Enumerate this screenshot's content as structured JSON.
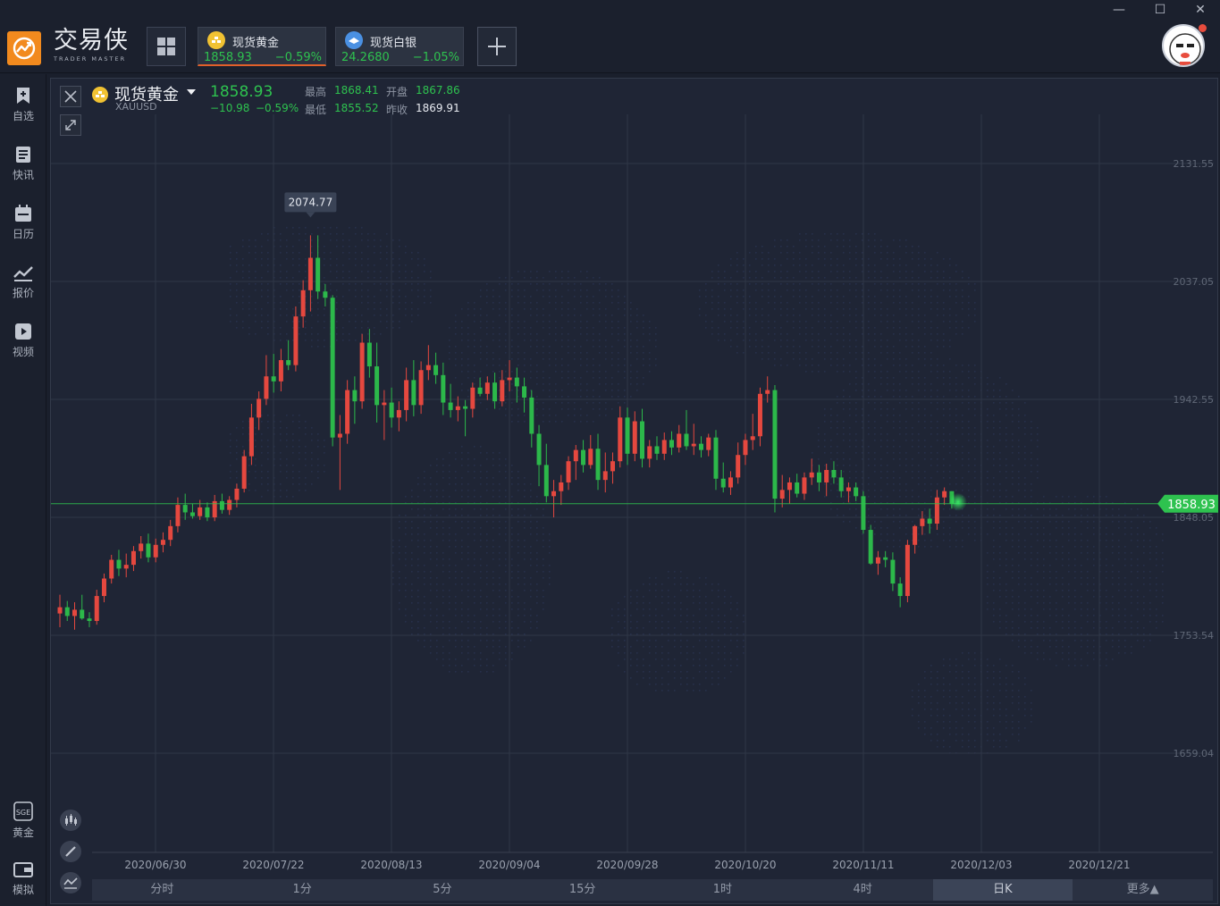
{
  "app": {
    "brand_cn": "交易侠",
    "brand_en": "TRADER MASTER"
  },
  "tabs": [
    {
      "name": "现货黄金",
      "price": "1858.93",
      "change": "−0.59%",
      "icon": "gold-coin-icon",
      "color": "#f1c232"
    },
    {
      "name": "现货白银",
      "price": "24.2680",
      "change": "−1.05%",
      "icon": "silver-coin-icon",
      "color": "#4a90e2"
    }
  ],
  "window_controls": {
    "minimize": "—",
    "maximize": "☐",
    "close": "✕"
  },
  "sidebar": {
    "items": [
      {
        "label": "自选",
        "icon": "watchlist-icon"
      },
      {
        "label": "快讯",
        "icon": "news-flash-icon"
      },
      {
        "label": "日历",
        "icon": "calendar-icon"
      },
      {
        "label": "报价",
        "icon": "quote-chart-icon"
      },
      {
        "label": "视频",
        "icon": "video-play-icon"
      }
    ],
    "bottom_items": [
      {
        "label": "黄金",
        "icon": "sge-icon",
        "icon_text": "SGE"
      },
      {
        "label": "模拟",
        "icon": "wallet-icon"
      }
    ]
  },
  "quote": {
    "name": "现货黄金",
    "code": "XAUUSD",
    "price": "1858.93",
    "change": "−10.98",
    "change_pct": "−0.59%",
    "high_label": "最高",
    "high": "1868.41",
    "open_label": "开盘",
    "open": "1867.86",
    "low_label": "最低",
    "low": "1855.52",
    "prev_label": "昨收",
    "prev_close": "1869.91"
  },
  "colors": {
    "up": "#e5483f",
    "down": "#2cb84a",
    "price_line": "#2ec24f",
    "grid": "#2f3647"
  },
  "periods": [
    "分时",
    "1分",
    "5分",
    "15分",
    "1时",
    "4时",
    "日K",
    "更多▲"
  ],
  "active_period": "日K",
  "chart_data": {
    "type": "candlestick",
    "y_ticks": [
      "2131.55",
      "2037.05",
      "1942.55",
      "1848.05",
      "1753.54",
      "1659.04"
    ],
    "ylim": [
      1659.04,
      2131.55
    ],
    "x_ticks": [
      "2020/06/30",
      "2020/07/22",
      "2020/08/13",
      "2020/09/04",
      "2020/09/28",
      "2020/10/20",
      "2020/11/11",
      "2020/12/03",
      "2020/12/21"
    ],
    "current_price": "1858.93",
    "peak_annotation": "2074.77",
    "ohlc": [
      [
        1771,
        1786,
        1760,
        1776
      ],
      [
        1776,
        1781,
        1765,
        1769
      ],
      [
        1769,
        1780,
        1758,
        1774
      ],
      [
        1774,
        1786,
        1766,
        1767
      ],
      [
        1767,
        1772,
        1760,
        1765
      ],
      [
        1765,
        1790,
        1762,
        1785
      ],
      [
        1785,
        1803,
        1780,
        1799
      ],
      [
        1799,
        1818,
        1795,
        1814
      ],
      [
        1814,
        1822,
        1801,
        1807
      ],
      [
        1807,
        1819,
        1800,
        1810
      ],
      [
        1810,
        1825,
        1805,
        1821
      ],
      [
        1821,
        1833,
        1815,
        1827
      ],
      [
        1827,
        1835,
        1812,
        1816
      ],
      [
        1816,
        1831,
        1812,
        1826
      ],
      [
        1826,
        1836,
        1820,
        1830
      ],
      [
        1830,
        1846,
        1825,
        1841
      ],
      [
        1841,
        1864,
        1836,
        1858
      ],
      [
        1858,
        1867,
        1846,
        1852
      ],
      [
        1852,
        1859,
        1847,
        1849
      ],
      [
        1849,
        1862,
        1846,
        1856
      ],
      [
        1856,
        1860,
        1845,
        1848
      ],
      [
        1848,
        1866,
        1845,
        1861
      ],
      [
        1861,
        1867,
        1851,
        1854
      ],
      [
        1854,
        1865,
        1850,
        1862
      ],
      [
        1862,
        1875,
        1856,
        1871
      ],
      [
        1871,
        1902,
        1868,
        1897
      ],
      [
        1897,
        1939,
        1890,
        1928
      ],
      [
        1928,
        1949,
        1918,
        1943
      ],
      [
        1943,
        1978,
        1938,
        1961
      ],
      [
        1961,
        1979,
        1948,
        1957
      ],
      [
        1957,
        1983,
        1949,
        1974
      ],
      [
        1974,
        1990,
        1966,
        1970
      ],
      [
        1970,
        2017,
        1965,
        2009
      ],
      [
        2009,
        2038,
        2000,
        2030
      ],
      [
        2030,
        2074,
        2013,
        2056
      ],
      [
        2056,
        2074,
        2023,
        2029
      ],
      [
        2029,
        2035,
        2017,
        2024
      ],
      [
        2024,
        2026,
        1905,
        1912
      ],
      [
        1912,
        1930,
        1870,
        1915
      ],
      [
        1915,
        1958,
        1907,
        1950
      ],
      [
        1950,
        1961,
        1923,
        1941
      ],
      [
        1941,
        1995,
        1935,
        1988
      ],
      [
        1988,
        1999,
        1960,
        1969
      ],
      [
        1969,
        1988,
        1924,
        1938
      ],
      [
        1938,
        1950,
        1910,
        1940
      ],
      [
        1940,
        1952,
        1920,
        1928
      ],
      [
        1928,
        1941,
        1917,
        1934
      ],
      [
        1934,
        1968,
        1925,
        1958
      ],
      [
        1958,
        1974,
        1929,
        1938
      ],
      [
        1938,
        1973,
        1931,
        1966
      ],
      [
        1966,
        1986,
        1958,
        1970
      ],
      [
        1970,
        1980,
        1955,
        1962
      ],
      [
        1962,
        1972,
        1930,
        1940
      ],
      [
        1940,
        1955,
        1928,
        1934
      ],
      [
        1934,
        1945,
        1925,
        1937
      ],
      [
        1937,
        1942,
        1913,
        1935
      ],
      [
        1935,
        1956,
        1928,
        1952
      ],
      [
        1952,
        1960,
        1945,
        1947
      ],
      [
        1947,
        1961,
        1942,
        1956
      ],
      [
        1956,
        1964,
        1935,
        1941
      ],
      [
        1941,
        1966,
        1937,
        1958
      ],
      [
        1958,
        1974,
        1949,
        1960
      ],
      [
        1960,
        1968,
        1940,
        1953
      ],
      [
        1953,
        1960,
        1932,
        1944
      ],
      [
        1944,
        1950,
        1904,
        1915
      ],
      [
        1915,
        1922,
        1873,
        1890
      ],
      [
        1890,
        1907,
        1860,
        1865
      ],
      [
        1865,
        1878,
        1848,
        1869
      ],
      [
        1869,
        1882,
        1858,
        1876
      ],
      [
        1876,
        1897,
        1870,
        1893
      ],
      [
        1893,
        1906,
        1878,
        1902
      ],
      [
        1902,
        1910,
        1884,
        1890
      ],
      [
        1890,
        1914,
        1887,
        1903
      ],
      [
        1903,
        1915,
        1870,
        1878
      ],
      [
        1878,
        1900,
        1868,
        1885
      ],
      [
        1885,
        1900,
        1875,
        1893
      ],
      [
        1893,
        1937,
        1888,
        1928
      ],
      [
        1928,
        1936,
        1890,
        1899
      ],
      [
        1899,
        1933,
        1893,
        1925
      ],
      [
        1925,
        1935,
        1888,
        1895
      ],
      [
        1895,
        1910,
        1888,
        1905
      ],
      [
        1905,
        1913,
        1894,
        1899
      ],
      [
        1899,
        1916,
        1894,
        1910
      ],
      [
        1910,
        1917,
        1898,
        1904
      ],
      [
        1904,
        1922,
        1900,
        1915
      ],
      [
        1915,
        1934,
        1902,
        1905
      ],
      [
        1905,
        1923,
        1898,
        1907
      ],
      [
        1907,
        1913,
        1896,
        1902
      ],
      [
        1902,
        1915,
        1897,
        1912
      ],
      [
        1912,
        1918,
        1870,
        1879
      ],
      [
        1879,
        1892,
        1868,
        1872
      ],
      [
        1872,
        1885,
        1866,
        1880
      ],
      [
        1880,
        1908,
        1875,
        1898
      ],
      [
        1898,
        1915,
        1890,
        1910
      ],
      [
        1910,
        1931,
        1902,
        1913
      ],
      [
        1913,
        1952,
        1905,
        1947
      ],
      [
        1947,
        1961,
        1940,
        1950
      ],
      [
        1950,
        1954,
        1852,
        1863
      ],
      [
        1863,
        1882,
        1856,
        1870
      ],
      [
        1870,
        1880,
        1859,
        1876
      ],
      [
        1876,
        1883,
        1864,
        1867
      ],
      [
        1867,
        1884,
        1862,
        1880
      ],
      [
        1880,
        1895,
        1874,
        1884
      ],
      [
        1884,
        1890,
        1869,
        1876
      ],
      [
        1876,
        1891,
        1865,
        1886
      ],
      [
        1886,
        1893,
        1875,
        1880
      ],
      [
        1880,
        1886,
        1864,
        1869
      ],
      [
        1869,
        1876,
        1860,
        1872
      ],
      [
        1872,
        1876,
        1861,
        1865
      ],
      [
        1865,
        1869,
        1835,
        1838
      ],
      [
        1838,
        1842,
        1810,
        1811
      ],
      [
        1811,
        1821,
        1802,
        1816
      ],
      [
        1816,
        1821,
        1808,
        1814
      ],
      [
        1814,
        1820,
        1789,
        1795
      ],
      [
        1795,
        1800,
        1776,
        1785
      ],
      [
        1785,
        1830,
        1780,
        1826
      ],
      [
        1826,
        1842,
        1819,
        1841
      ],
      [
        1841,
        1853,
        1834,
        1847
      ],
      [
        1847,
        1855,
        1835,
        1843
      ],
      [
        1843,
        1870,
        1838,
        1864
      ],
      [
        1864,
        1872,
        1858,
        1869
      ],
      [
        1869,
        1869,
        1855,
        1859
      ]
    ]
  }
}
